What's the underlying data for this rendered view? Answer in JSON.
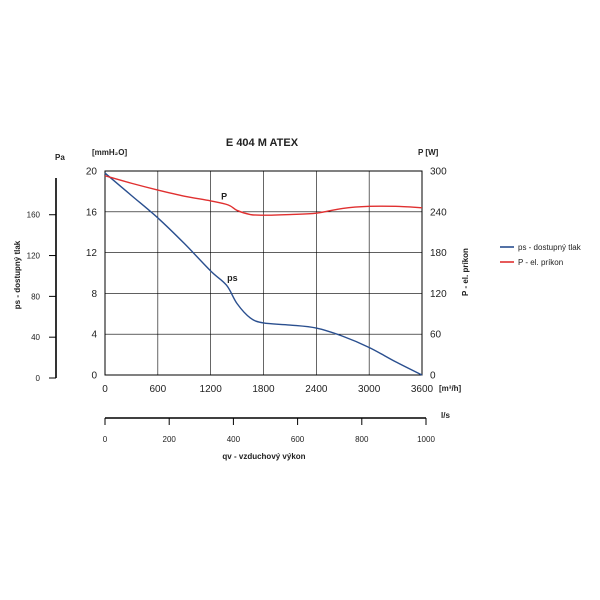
{
  "chart_data": {
    "type": "line",
    "title": "E 404 M ATEX",
    "x_axis": {
      "unit": "[m³/h]",
      "ticks": [
        0,
        600,
        1200,
        1800,
        2400,
        3000,
        3600
      ],
      "range": [
        0,
        3600
      ]
    },
    "x_axis_ls": {
      "unit": "l/s",
      "ticks": [
        0,
        200,
        400,
        600,
        800,
        1000
      ],
      "range": [
        0,
        1000
      ],
      "title": "qv - vzduchový výkon"
    },
    "y_left": {
      "unit": "[mmH₂O]",
      "ticks": [
        0,
        4,
        8,
        12,
        16,
        20
      ],
      "range": [
        0,
        20
      ]
    },
    "y_left_pa": {
      "unit": "Pa",
      "ticks": [
        0,
        40,
        80,
        120,
        160
      ],
      "range": [
        0,
        196
      ],
      "title": "ps - dostupný tlak"
    },
    "y_right": {
      "unit": "P [W]",
      "ticks": [
        0,
        60,
        120,
        180,
        240,
        300
      ],
      "range": [
        0,
        300
      ],
      "title": "P - el. príkon"
    },
    "grid": true,
    "legend_position": "right",
    "series": [
      {
        "name": "ps - dostupný tlak",
        "label": "ps",
        "axis": "left",
        "color": "#2a4f8f",
        "x": [
          0,
          300,
          600,
          900,
          1200,
          1380,
          1500,
          1650,
          1800,
          2100,
          2400,
          2700,
          3000,
          3300,
          3600
        ],
        "y": [
          19.8,
          17.6,
          15.4,
          12.9,
          10.2,
          8.8,
          7.0,
          5.6,
          5.1,
          4.9,
          4.6,
          3.8,
          2.7,
          1.3,
          0
        ]
      },
      {
        "name": "P - el. príkon",
        "label": "P",
        "axis": "right",
        "color": "#e03030",
        "x": [
          0,
          300,
          600,
          900,
          1200,
          1400,
          1500,
          1650,
          1800,
          2100,
          2400,
          2700,
          3000,
          3300,
          3600
        ],
        "y": [
          293,
          282,
          272,
          263,
          256,
          250,
          242,
          236,
          235,
          236,
          238,
          245,
          248,
          248,
          246
        ]
      }
    ]
  }
}
